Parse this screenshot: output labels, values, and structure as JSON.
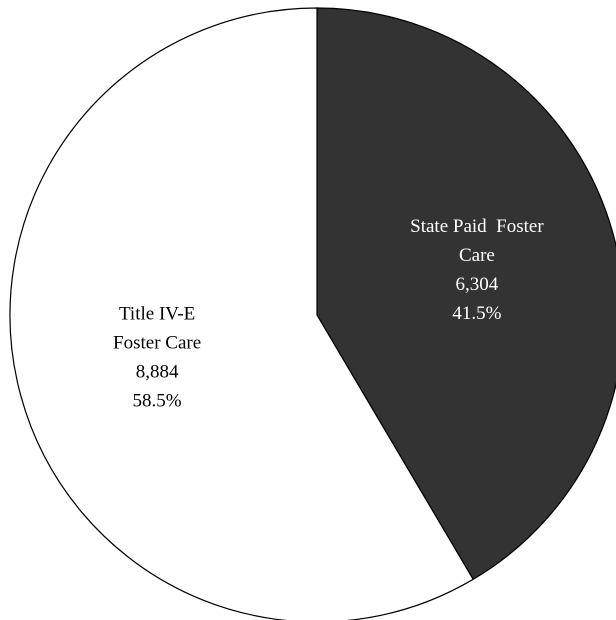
{
  "chart_data": {
    "type": "pie",
    "categories": [
      [
        "State Paid  Foster",
        "Care"
      ],
      [
        "Title IV-E",
        "Foster Care"
      ]
    ],
    "values": [
      6304,
      8884
    ],
    "value_labels": [
      "6,304",
      "8,884"
    ],
    "percentages": [
      41.5,
      58.5
    ],
    "percentage_labels": [
      "41.5%",
      "58.5%"
    ],
    "colors": [
      "#333333",
      "#ffffff"
    ],
    "label_colors": [
      "#ffffff",
      "#000000"
    ]
  }
}
